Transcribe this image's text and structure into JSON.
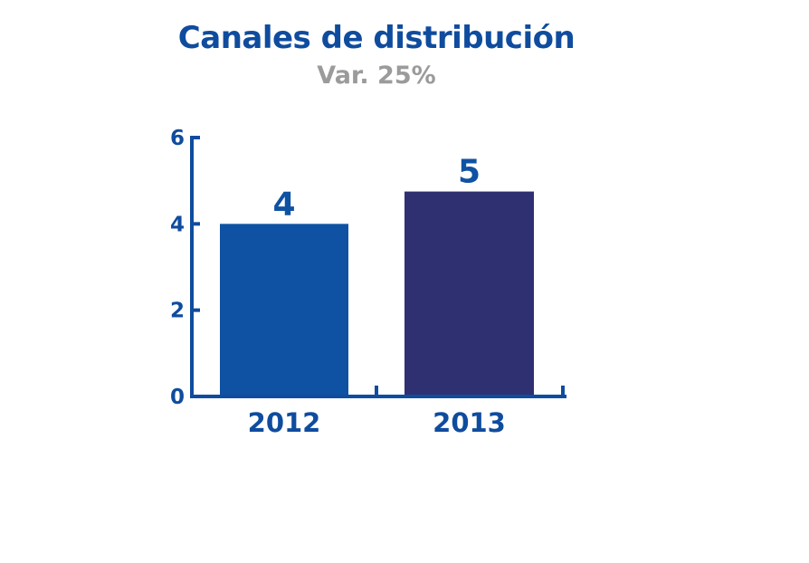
{
  "chart_data": {
    "type": "bar",
    "title": "Canales de distribución",
    "subtitle": "Var. 25%",
    "categories": [
      "2012",
      "2013"
    ],
    "values": [
      4,
      4.75
    ],
    "value_labels": [
      "4",
      "5"
    ],
    "ylim": [
      0,
      6
    ],
    "yticks": [
      "0",
      "2",
      "4",
      "6"
    ],
    "grid": false,
    "legend": "none",
    "colors": {
      "title": "#0f4c9e",
      "subtitle": "#9b9b9b",
      "axis": "#0f4c9e",
      "bars": [
        "#0f52a3",
        "#2f3072"
      ]
    }
  }
}
